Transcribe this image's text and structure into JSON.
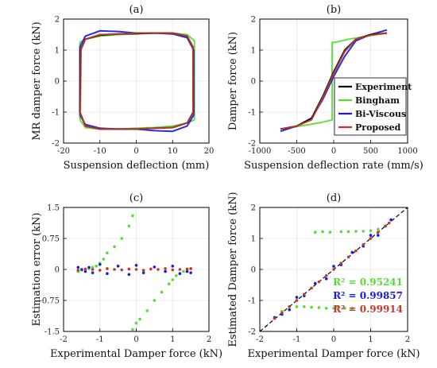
{
  "colors": {
    "experiment": "#000000",
    "bingham": "#55dd33",
    "biviscous": "#1a1adc",
    "proposed": "#c0392b",
    "grid": "#e6e6e6"
  },
  "chart_data": [
    {
      "panel": "(a)",
      "type": "line",
      "xlabel": "Suspension deflection (mm)",
      "ylabel": "MR damper force (kN)",
      "xlim": [
        -20,
        20
      ],
      "ylim": [
        -2,
        2
      ],
      "xticks": [
        -20,
        -10,
        0,
        10,
        20
      ],
      "yticks": [
        -2,
        -1,
        0,
        1,
        2
      ],
      "xtick_labels": [
        "-20",
        "-10",
        "0",
        "10",
        "20"
      ],
      "ytick_labels": [
        "-2",
        "-1",
        "0",
        "1",
        "2"
      ],
      "grid": true,
      "series": [
        {
          "name": "Bingham",
          "color": "#55dd33",
          "x": [
            -15.5,
            -15.5,
            -14,
            -10,
            -5,
            0,
            5,
            10,
            14,
            16,
            16,
            14,
            10,
            5,
            0,
            -5,
            -10,
            -14,
            -15.5
          ],
          "y": [
            -1.25,
            1.25,
            1.35,
            1.45,
            1.5,
            1.52,
            1.55,
            1.55,
            1.5,
            1.3,
            -1.25,
            -1.35,
            -1.45,
            -1.5,
            -1.52,
            -1.55,
            -1.55,
            -1.5,
            -1.25
          ]
        },
        {
          "name": "Bi-Viscous",
          "color": "#1a1adc",
          "x": [
            -15.5,
            -15.5,
            -14,
            -10,
            -5,
            0,
            5,
            10,
            14,
            15.8,
            15.8,
            14,
            10,
            5,
            0,
            -5,
            -10,
            -14,
            -15.5
          ],
          "y": [
            -1.1,
            1.1,
            1.45,
            1.62,
            1.6,
            1.55,
            1.55,
            1.52,
            1.4,
            1.0,
            -1.1,
            -1.45,
            -1.62,
            -1.6,
            -1.55,
            -1.55,
            -1.52,
            -1.4,
            -1.1
          ]
        },
        {
          "name": "Experiment",
          "color": "#000000",
          "x": [
            -15.5,
            -15.3,
            -14,
            -10,
            -5,
            0,
            5,
            10,
            14,
            15.6,
            15.7,
            14,
            10,
            5,
            0,
            -5,
            -10,
            -14,
            -15.5
          ],
          "y": [
            -1.0,
            1.0,
            1.35,
            1.48,
            1.52,
            1.53,
            1.55,
            1.55,
            1.45,
            1.1,
            -1.0,
            -1.35,
            -1.5,
            -1.52,
            -1.55,
            -1.55,
            -1.55,
            -1.45,
            -1.0
          ]
        },
        {
          "name": "Proposed",
          "color": "#c0392b",
          "x": [
            -15.4,
            -15.2,
            -14,
            -10,
            -5,
            0,
            5,
            10,
            14,
            15.6,
            15.6,
            14,
            10,
            5,
            0,
            -5,
            -10,
            -14,
            -15.4
          ],
          "y": [
            -1.05,
            1.05,
            1.35,
            1.5,
            1.52,
            1.55,
            1.55,
            1.55,
            1.45,
            1.1,
            -1.05,
            -1.35,
            -1.5,
            -1.52,
            -1.55,
            -1.55,
            -1.55,
            -1.45,
            -1.05
          ]
        }
      ]
    },
    {
      "panel": "(b)",
      "type": "line",
      "xlabel": "Suspension deflection rate (mm/s)",
      "ylabel": "Damper force (kN)",
      "xlim": [
        -1000,
        1000
      ],
      "ylim": [
        -2,
        2
      ],
      "xticks": [
        -1000,
        -500,
        0,
        500,
        1000
      ],
      "yticks": [
        -2,
        -1,
        0,
        1,
        2
      ],
      "xtick_labels": [
        "-1000",
        "-500",
        "0",
        "500",
        "1000"
      ],
      "ytick_labels": [
        "-2",
        "-1",
        "0",
        "1",
        "2"
      ],
      "grid": true,
      "legend": {
        "placement": "right",
        "entries": [
          "Experiment",
          "Bingham",
          "Bi-Viscous",
          "Proposed"
        ]
      },
      "series": [
        {
          "name": "Bingham",
          "color": "#55dd33",
          "x": [
            -720,
            -500,
            -200,
            -20,
            -20,
            20,
            20,
            200,
            500,
            720
          ],
          "y": [
            -1.55,
            -1.47,
            -1.35,
            -1.25,
            1.25,
            1.25,
            1.25,
            1.35,
            1.47,
            1.55
          ]
        },
        {
          "name": "Bi-Viscous",
          "color": "#1a1adc",
          "x": [
            -720,
            -500,
            -300,
            -150,
            0,
            150,
            300,
            500,
            720
          ],
          "y": [
            -1.62,
            -1.45,
            -1.2,
            -0.6,
            0.15,
            0.8,
            1.3,
            1.5,
            1.65
          ]
        },
        {
          "name": "Experiment",
          "color": "#000000",
          "x": [
            -720,
            -500,
            -300,
            -150,
            0,
            150,
            300,
            500,
            720
          ],
          "y": [
            -1.55,
            -1.45,
            -1.2,
            -0.5,
            0.3,
            1.0,
            1.35,
            1.5,
            1.55
          ]
        },
        {
          "name": "Proposed",
          "color": "#c0392b",
          "x": [
            -720,
            -500,
            -300,
            -150,
            0,
            150,
            300,
            500,
            720
          ],
          "y": [
            -1.55,
            -1.45,
            -1.25,
            -0.55,
            0.25,
            0.95,
            1.35,
            1.48,
            1.55
          ]
        }
      ]
    },
    {
      "panel": "(c)",
      "type": "scatter",
      "xlabel": "Experimental Damper force (kN)",
      "ylabel": "Estimation error (kN)",
      "xlim": [
        -2,
        2
      ],
      "ylim": [
        -1.5,
        1.5
      ],
      "xticks": [
        -2,
        -1,
        0,
        1,
        2
      ],
      "yticks": [
        -1.5,
        -0.75,
        0,
        0.75,
        1.5
      ],
      "xtick_labels": [
        "-2",
        "-1",
        "0",
        "1",
        "2"
      ],
      "ytick_labels": [
        "-1.5",
        "-0.75",
        "0",
        "0.75",
        "1.5"
      ],
      "grid": true,
      "series": [
        {
          "name": "Bingham",
          "color": "#55dd33",
          "x": [
            -1.6,
            -1.5,
            -1.4,
            -1.3,
            -1.2,
            -1.1,
            -1.0,
            -0.9,
            -0.8,
            -0.6,
            -0.4,
            -0.2,
            -0.1,
            0.1,
            0.3,
            0.5,
            0.7,
            0.9,
            1.0,
            1.1,
            1.2,
            1.3,
            1.4,
            1.5,
            -0.1,
            0.0
          ],
          "y": [
            -0.05,
            -0.02,
            0.0,
            0.02,
            0.05,
            0.08,
            0.15,
            0.25,
            0.4,
            0.55,
            0.75,
            1.05,
            1.3,
            -1.2,
            -1.0,
            -0.75,
            -0.55,
            -0.35,
            -0.25,
            -0.15,
            -0.1,
            -0.05,
            0.0,
            0.02,
            -1.45,
            -1.3
          ]
        },
        {
          "name": "Bi-Viscous",
          "color": "#1a1adc",
          "x": [
            -1.6,
            -1.5,
            -1.4,
            -1.3,
            -1.2,
            -1.0,
            -0.8,
            -0.5,
            -0.2,
            0.0,
            0.2,
            0.5,
            0.8,
            1.0,
            1.2,
            1.4,
            1.5
          ],
          "y": [
            0.05,
            0.0,
            -0.05,
            0.05,
            -0.08,
            0.12,
            -0.1,
            0.08,
            -0.12,
            0.1,
            -0.08,
            0.06,
            -0.05,
            0.08,
            -0.1,
            -0.05,
            -0.08
          ]
        },
        {
          "name": "Proposed",
          "color": "#c0392b",
          "x": [
            -1.6,
            -1.4,
            -1.2,
            -1.0,
            -0.8,
            -0.6,
            -0.4,
            -0.2,
            0.0,
            0.2,
            0.4,
            0.6,
            0.8,
            1.0,
            1.2,
            1.4,
            1.5
          ],
          "y": [
            -0.02,
            0.01,
            0.0,
            -0.02,
            0.02,
            0.0,
            -0.01,
            0.01,
            0.0,
            -0.02,
            0.01,
            0.0,
            0.02,
            -0.01,
            0.0,
            0.01,
            0.02
          ]
        }
      ]
    },
    {
      "panel": "(d)",
      "type": "scatter",
      "xlabel": "Experimental Damper force (kN)",
      "ylabel": "Estimated Damper force (kN)",
      "xlim": [
        -2,
        2
      ],
      "ylim": [
        -2,
        2
      ],
      "xticks": [
        -2,
        -1,
        0,
        1,
        2
      ],
      "yticks": [
        -2,
        -1,
        0,
        1,
        2
      ],
      "xtick_labels": [
        "-2",
        "-1",
        "0",
        "1",
        "2"
      ],
      "ytick_labels": [
        "-2",
        "-1",
        "0",
        "1",
        "2"
      ],
      "grid": true,
      "reference_line": {
        "style": "dashed",
        "color": "#000000",
        "x": [
          -2,
          2
        ],
        "y": [
          -2,
          2
        ]
      },
      "annotations": [
        {
          "text": "R² = 0.95241",
          "color": "#55dd33"
        },
        {
          "text": "R² = 0.99857",
          "color": "#1a1adc"
        },
        {
          "text": "R² = 0.99914",
          "color": "#c0392b"
        }
      ],
      "series": [
        {
          "name": "Bingham",
          "color": "#55dd33",
          "x": [
            -1.6,
            -1.4,
            -1.2,
            -1.0,
            -0.8,
            -0.6,
            -0.4,
            -0.2,
            0.0,
            0.2,
            0.4,
            0.6,
            0.8,
            1.0,
            1.2,
            1.4,
            -0.5,
            -0.3,
            -0.1,
            0.1,
            0.3,
            0.5
          ],
          "y": [
            -1.55,
            -1.35,
            -1.2,
            -1.2,
            -1.2,
            -1.22,
            -1.23,
            -1.25,
            -1.25,
            1.22,
            1.22,
            1.23,
            1.23,
            1.25,
            1.3,
            1.4,
            1.2,
            1.22,
            1.2,
            -1.2,
            -1.25,
            -1.25
          ]
        },
        {
          "name": "Bi-Viscous",
          "color": "#1a1adc",
          "x": [
            -1.6,
            -1.4,
            -1.2,
            -1.0,
            -0.8,
            -0.5,
            -0.2,
            0.0,
            0.2,
            0.5,
            0.8,
            1.0,
            1.2,
            1.4,
            1.55
          ],
          "y": [
            -1.55,
            -1.45,
            -1.3,
            -0.9,
            -0.85,
            -0.45,
            -0.3,
            0.1,
            0.15,
            0.55,
            0.75,
            1.1,
            1.1,
            1.4,
            1.6
          ]
        },
        {
          "name": "Proposed",
          "color": "#c0392b",
          "x": [
            -1.6,
            -1.4,
            -1.2,
            -1.0,
            -0.8,
            -0.6,
            -0.4,
            -0.2,
            0.0,
            0.2,
            0.4,
            0.6,
            0.8,
            1.0,
            1.2,
            1.4,
            1.5
          ],
          "y": [
            -1.58,
            -1.4,
            -1.2,
            -1.0,
            -0.8,
            -0.6,
            -0.4,
            -0.2,
            0.0,
            0.2,
            0.4,
            0.6,
            0.8,
            1.0,
            1.2,
            1.4,
            1.5
          ]
        }
      ]
    }
  ]
}
